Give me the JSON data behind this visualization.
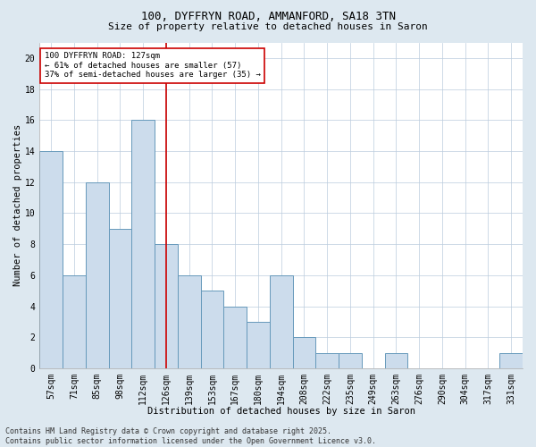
{
  "title_line1": "100, DYFFRYN ROAD, AMMANFORD, SA18 3TN",
  "title_line2": "Size of property relative to detached houses in Saron",
  "xlabel": "Distribution of detached houses by size in Saron",
  "ylabel": "Number of detached properties",
  "categories": [
    "57sqm",
    "71sqm",
    "85sqm",
    "98sqm",
    "112sqm",
    "126sqm",
    "139sqm",
    "153sqm",
    "167sqm",
    "180sqm",
    "194sqm",
    "208sqm",
    "222sqm",
    "235sqm",
    "249sqm",
    "263sqm",
    "276sqm",
    "290sqm",
    "304sqm",
    "317sqm",
    "331sqm"
  ],
  "values": [
    14,
    6,
    12,
    9,
    16,
    8,
    6,
    5,
    4,
    3,
    6,
    2,
    1,
    1,
    0,
    1,
    0,
    0,
    0,
    0,
    1
  ],
  "bar_color": "#ccdcec",
  "bar_edge_color": "#6699bb",
  "vline_x": 5,
  "vline_color": "#cc0000",
  "ylim": [
    0,
    21
  ],
  "yticks": [
    0,
    2,
    4,
    6,
    8,
    10,
    12,
    14,
    16,
    18,
    20
  ],
  "annotation_text": "100 DYFFRYN ROAD: 127sqm\n← 61% of detached houses are smaller (57)\n37% of semi-detached houses are larger (35) →",
  "annotation_box_color": "#ffffff",
  "annotation_box_edge": "#cc0000",
  "footnote": "Contains HM Land Registry data © Crown copyright and database right 2025.\nContains public sector information licensed under the Open Government Licence v3.0.",
  "bg_color": "#dde8f0",
  "plot_bg_color": "#ffffff",
  "grid_color": "#bbccdd",
  "title_fontsize": 9,
  "subtitle_fontsize": 8,
  "tick_fontsize": 7,
  "label_fontsize": 7.5,
  "annot_fontsize": 6.5,
  "footnote_fontsize": 6
}
